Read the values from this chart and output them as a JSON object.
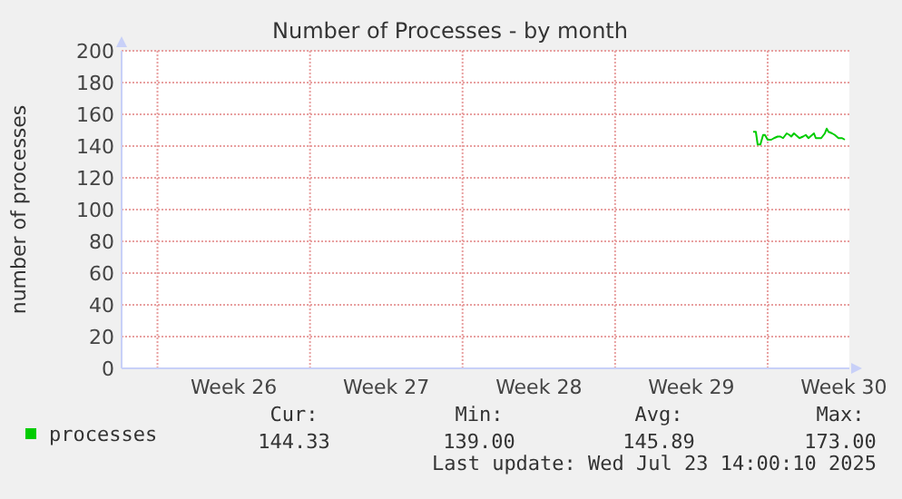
{
  "chart_data": {
    "type": "line",
    "title": "Number of Processes - by month",
    "ylabel": "number of processes",
    "xlim": [
      "2025-06-20T08:30",
      "2025-07-23T18:00"
    ],
    "xticks": [
      {
        "value": "2025-06-22",
        "label": null
      },
      {
        "value": "2025-06-29",
        "label": null
      },
      {
        "value": "2025-07-06",
        "label": null
      },
      {
        "value": "2025-07-13",
        "label": null
      },
      {
        "value": "2025-07-20",
        "label": null
      },
      {
        "value": "2025-06-25T12:00",
        "label": "Week 26"
      },
      {
        "value": "2025-07-02T12:00",
        "label": "Week 27"
      },
      {
        "value": "2025-07-09T12:00",
        "label": "Week 28"
      },
      {
        "value": "2025-07-16T12:00",
        "label": "Week 29"
      },
      {
        "value": "2025-07-23T12:00",
        "label": "Week 30"
      }
    ],
    "ylim": [
      0,
      200
    ],
    "yticks": [
      0,
      20,
      40,
      60,
      80,
      100,
      120,
      140,
      160,
      180,
      200
    ],
    "grid": true,
    "legend": "bottom left",
    "line_style": "solid",
    "series": [
      {
        "name": "processes",
        "color": "#00cc00",
        "x": [
          "2025-07-19T08:00",
          "2025-07-19T11:00",
          "2025-07-19T13:00",
          "2025-07-19T16:00",
          "2025-07-19T19:00",
          "2025-07-19T21:00",
          "2025-07-20T00:00",
          "2025-07-20T04:00",
          "2025-07-20T07:00",
          "2025-07-20T11:00",
          "2025-07-20T14:00",
          "2025-07-20T17:00",
          "2025-07-20T21:00",
          "2025-07-21T00:00",
          "2025-07-21T02:00",
          "2025-07-21T05:00",
          "2025-07-21T09:00",
          "2025-07-21T11:00",
          "2025-07-21T15:00",
          "2025-07-21T18:00",
          "2025-07-21T21:00",
          "2025-07-21T23:00",
          "2025-07-22T03:00",
          "2025-07-22T05:00",
          "2025-07-22T08:00",
          "2025-07-22T11:00",
          "2025-07-22T15:00",
          "2025-07-22T17:00",
          "2025-07-22T19:00",
          "2025-07-22T23:00",
          "2025-07-23T02:00",
          "2025-07-23T06:00",
          "2025-07-23T10:00",
          "2025-07-23T13:00"
        ],
        "values": [
          149,
          149,
          141,
          141,
          147,
          147,
          144,
          144,
          145,
          146,
          146,
          145,
          148,
          147,
          146,
          148,
          146,
          145,
          146,
          147,
          145,
          146,
          148,
          145,
          145,
          145,
          148,
          151,
          149,
          148,
          147,
          145,
          145,
          144
        ]
      }
    ],
    "annotations": [
      "Cur:",
      "Min:",
      "Avg:",
      "Max:",
      "144.33",
      "139.00",
      "145.89",
      "173.00",
      "Last update: Wed Jul 23 14:00:10 2025"
    ]
  }
}
